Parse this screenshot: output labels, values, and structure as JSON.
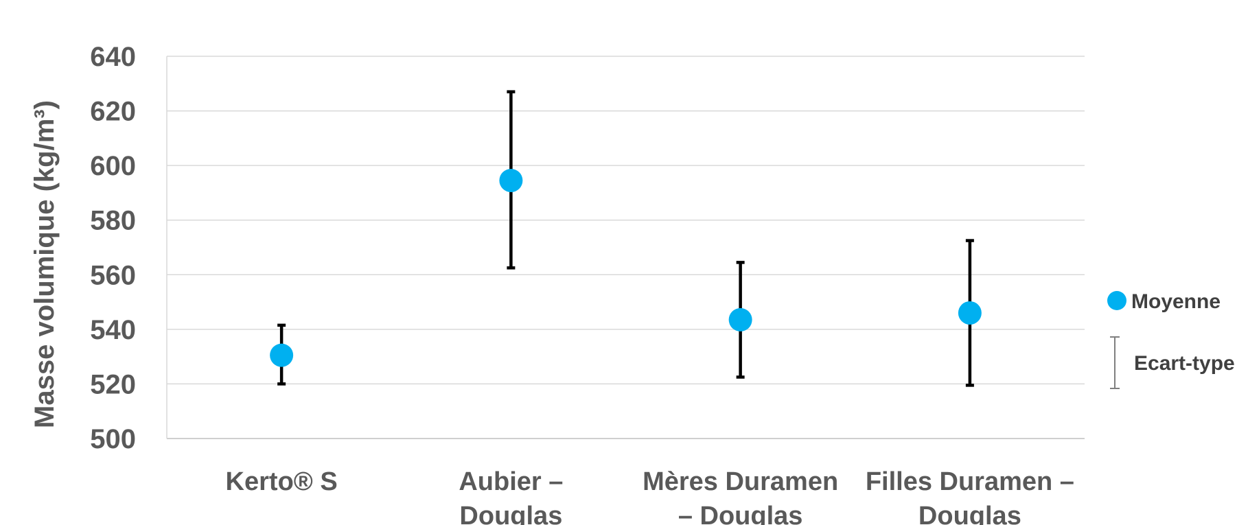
{
  "chart_data": {
    "type": "scatter",
    "xlabel": "",
    "ylabel": "Masse volumique (kg/m³)",
    "ylim": [
      500,
      640
    ],
    "yticks": [
      500,
      520,
      540,
      560,
      580,
      600,
      620,
      640
    ],
    "grid": true,
    "legend_position": "right",
    "categories": [
      [
        "Kerto® S"
      ],
      [
        "Aubier –",
        "Douglas"
      ],
      [
        "Mères Duramen",
        "– Douglas"
      ],
      [
        "Filles Duramen –",
        "Douglas"
      ]
    ],
    "series": [
      {
        "name": "Moyenne",
        "values": [
          530.5,
          594.5,
          543.5,
          546
        ]
      },
      {
        "name": "Ecart-type",
        "low": [
          520,
          562.5,
          522.5,
          519.5
        ],
        "high": [
          541.5,
          627,
          564.5,
          572.5
        ]
      }
    ],
    "colors": {
      "marker": "#00B0F0",
      "errorbar": "#000000",
      "grid": "#D9D9D9",
      "text": "#595959"
    }
  }
}
